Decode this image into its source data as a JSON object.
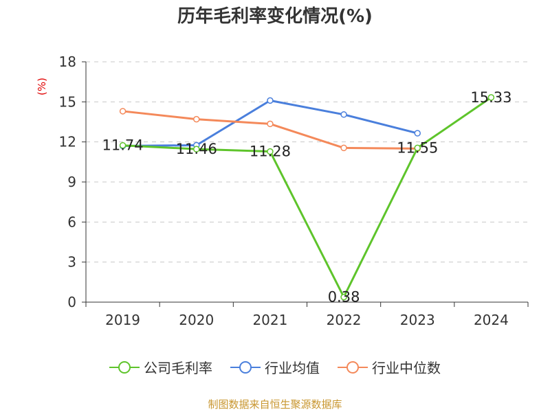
{
  "page": {
    "title": "历年毛利率变化情况(%)",
    "source": "制图数据来自恒生聚源数据库"
  },
  "chart_data": {
    "type": "line",
    "title": "历年毛利率变化情况(%)",
    "ylabel": "(%)",
    "categories": [
      "2019",
      "2020",
      "2021",
      "2022",
      "2023",
      "2024"
    ],
    "ylim": [
      0,
      18
    ],
    "yticks": [
      0,
      3,
      6,
      9,
      12,
      15,
      18
    ],
    "grid": true,
    "legend_position": "bottom",
    "series": [
      {
        "name": "公司毛利率",
        "color": "#5ec42b",
        "values": [
          11.74,
          11.46,
          11.28,
          0.38,
          11.55,
          15.33
        ],
        "labels": [
          "11.74",
          "11.46",
          "11.28",
          "0.38",
          "11.55",
          "15.33"
        ],
        "show_labels": true
      },
      {
        "name": "行业均值",
        "color": "#4a7fdc",
        "values": [
          11.7,
          11.75,
          15.1,
          14.05,
          12.65,
          null
        ],
        "show_labels": false
      },
      {
        "name": "行业中位数",
        "color": "#f4895a",
        "values": [
          14.3,
          13.7,
          13.35,
          11.55,
          11.5,
          null
        ],
        "show_labels": false
      }
    ]
  }
}
